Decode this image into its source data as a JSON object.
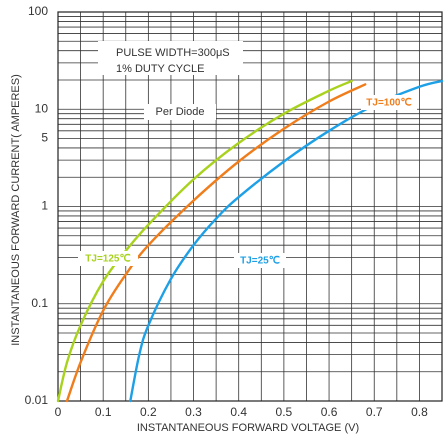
{
  "chart_data": {
    "type": "line",
    "xlabel": "INSTANTANEOUS FORWARD VOLTAGE (V)",
    "ylabel": "INSTANTANEOUS FORWARD CURRENT( AMPERES)",
    "xlim": [
      0,
      0.85
    ],
    "ylim": [
      0.01,
      100
    ],
    "yscale": "log",
    "grid": true,
    "x_ticks": [
      {
        "value": 0,
        "label": "0"
      },
      {
        "value": 0.1,
        "label": "0.1"
      },
      {
        "value": 0.2,
        "label": "0.2"
      },
      {
        "value": 0.3,
        "label": "0.3"
      },
      {
        "value": 0.4,
        "label": "0.4"
      },
      {
        "value": 0.5,
        "label": "0.5"
      },
      {
        "value": 0.6,
        "label": "0.6"
      },
      {
        "value": 0.7,
        "label": "0.7"
      },
      {
        "value": 0.8,
        "label": "0.8"
      }
    ],
    "y_ticks": [
      {
        "value": 0.01,
        "label": "0.01"
      },
      {
        "value": 0.1,
        "label": "0.1"
      },
      {
        "value": 1,
        "label": "1"
      },
      {
        "value": 5,
        "label": "5"
      },
      {
        "value": 10,
        "label": "10"
      },
      {
        "value": 100,
        "label": "100"
      }
    ],
    "annotations": [
      "PULSE WIDTH=300μS",
      "1% DUTY CYCLE",
      "Per Diode"
    ],
    "series": [
      {
        "name": "TJ=125℃",
        "color": "#a8d21e",
        "x": [
          0.0,
          0.02,
          0.05,
          0.1,
          0.15,
          0.2,
          0.3,
          0.4,
          0.5,
          0.6,
          0.65
        ],
        "y": [
          0.01,
          0.025,
          0.06,
          0.17,
          0.35,
          0.65,
          1.9,
          4.5,
          9,
          15.5,
          19.5
        ]
      },
      {
        "name": "TJ=100℃",
        "color": "#f07d1c",
        "x": [
          0.02,
          0.05,
          0.1,
          0.15,
          0.2,
          0.3,
          0.4,
          0.5,
          0.6,
          0.68
        ],
        "y": [
          0.01,
          0.025,
          0.085,
          0.2,
          0.4,
          1.15,
          2.9,
          6.3,
          12,
          18
        ]
      },
      {
        "name": "TJ=25℃",
        "color": "#1ea0e6",
        "x": [
          0.16,
          0.18,
          0.2,
          0.25,
          0.3,
          0.35,
          0.4,
          0.5,
          0.6,
          0.7,
          0.8,
          0.85
        ],
        "y": [
          0.01,
          0.03,
          0.06,
          0.18,
          0.4,
          0.75,
          1.25,
          2.9,
          6,
          11,
          17,
          19.5
        ]
      }
    ]
  }
}
